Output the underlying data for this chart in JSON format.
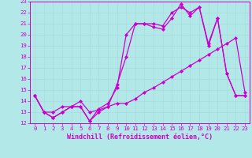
{
  "xlabel": "Windchill (Refroidissement éolien,°C)",
  "bg_color": "#b2e8e8",
  "grid_color": "#aadddd",
  "line_color": "#cc00cc",
  "xlim": [
    -0.5,
    23.5
  ],
  "ylim": [
    12,
    23
  ],
  "yticks": [
    12,
    13,
    14,
    15,
    16,
    17,
    18,
    19,
    20,
    21,
    22,
    23
  ],
  "xticks": [
    0,
    1,
    2,
    3,
    4,
    5,
    6,
    7,
    8,
    9,
    10,
    11,
    12,
    13,
    14,
    15,
    16,
    17,
    18,
    19,
    20,
    21,
    22,
    23
  ],
  "line1_x": [
    0,
    1,
    2,
    3,
    4,
    5,
    6,
    7,
    8,
    9,
    10,
    11,
    12,
    13,
    14,
    15,
    16,
    17,
    18,
    19,
    20,
    21,
    22,
    23
  ],
  "line1_y": [
    14.5,
    13.0,
    12.5,
    13.0,
    13.5,
    13.5,
    12.2,
    13.0,
    13.5,
    15.5,
    18.0,
    21.0,
    21.0,
    20.7,
    20.5,
    21.5,
    22.8,
    21.7,
    22.5,
    19.0,
    21.5,
    16.5,
    14.5,
    14.5
  ],
  "line2_x": [
    0,
    1,
    2,
    3,
    4,
    5,
    6,
    7,
    8,
    9,
    10,
    11,
    12,
    13,
    14,
    15,
    16,
    17,
    18,
    19,
    20,
    21,
    22,
    23
  ],
  "line2_y": [
    14.5,
    13.0,
    12.5,
    13.0,
    13.5,
    13.5,
    12.2,
    13.3,
    13.8,
    15.2,
    20.0,
    21.0,
    21.0,
    21.0,
    20.8,
    22.0,
    22.5,
    22.0,
    22.5,
    19.2,
    21.5,
    16.5,
    14.5,
    14.5
  ],
  "line3_x": [
    0,
    1,
    2,
    3,
    4,
    5,
    6,
    7,
    8,
    9,
    10,
    11,
    12,
    13,
    14,
    15,
    16,
    17,
    18,
    19,
    20,
    21,
    22,
    23
  ],
  "line3_y": [
    14.5,
    13.0,
    13.0,
    13.5,
    13.5,
    14.0,
    13.0,
    13.2,
    13.5,
    13.8,
    13.8,
    14.2,
    14.8,
    15.2,
    15.7,
    16.2,
    16.7,
    17.2,
    17.7,
    18.2,
    18.7,
    19.2,
    19.7,
    14.8
  ],
  "marker": "D",
  "markersize": 2.0,
  "linewidth": 0.9,
  "xlabel_fontsize": 6.0,
  "tick_fontsize": 5.2
}
